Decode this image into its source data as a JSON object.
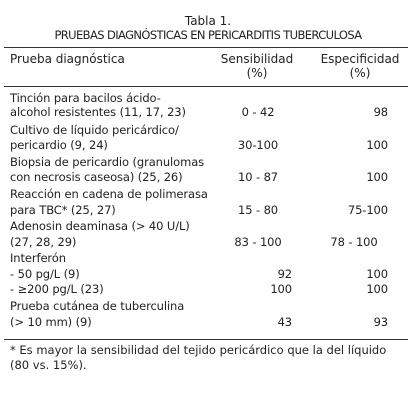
{
  "caption": {
    "line1": "Tabla 1.",
    "line2": "PRUEBAS DIAGNÓSTICAS EN PERICARDITIS TUBERCULOSA"
  },
  "headers": {
    "prueba": "Prueba diagnóstica",
    "sens_line1": "Sensibilidad",
    "sens_line2": "(%)",
    "esp_line1": "Especificidad",
    "esp_line2": "(%)"
  },
  "rows": [
    {
      "l1": "Tinción para bacilos ácido-",
      "l2": "alcohol resistentes (11, 17, 23)",
      "sens": "0 - 42",
      "esp": "98"
    },
    {
      "l1": "Cultivo de líquido pericárdico/",
      "l2": "pericardio (9, 24)",
      "sens": "30-100",
      "esp": "100"
    },
    {
      "l1": "Biopsia de pericardio (granulomas",
      "l2": "con necrosis caseosa) (25, 26)",
      "sens": "10 - 87",
      "esp": "100"
    },
    {
      "l1": "Reacción en cadena de polimerasa",
      "l2": "para TBC* (25, 27)",
      "sens": "15 - 80",
      "esp": "75-100"
    },
    {
      "l1": "Adenosin deaminasa (> 40 U/L)",
      "l2": "(27, 28, 29)",
      "sens": "83 - 100",
      "esp": "78 - 100"
    },
    {
      "l1": "Interferón",
      "l2": "- 50 pg/L (9)",
      "l3": "- ≥200 pg/L (23)",
      "sens_a": "92",
      "sens_b": "100",
      "esp_a": "100",
      "esp_b": "100"
    },
    {
      "l1": "Prueba cutánea de tuberculina",
      "l2": "(> 10 mm) (9)",
      "sens": "43",
      "esp": "93"
    }
  ],
  "footnote": "* Es mayor la sensibilidad del tejido pericárdico que la del líquido (80 vs. 15%)."
}
